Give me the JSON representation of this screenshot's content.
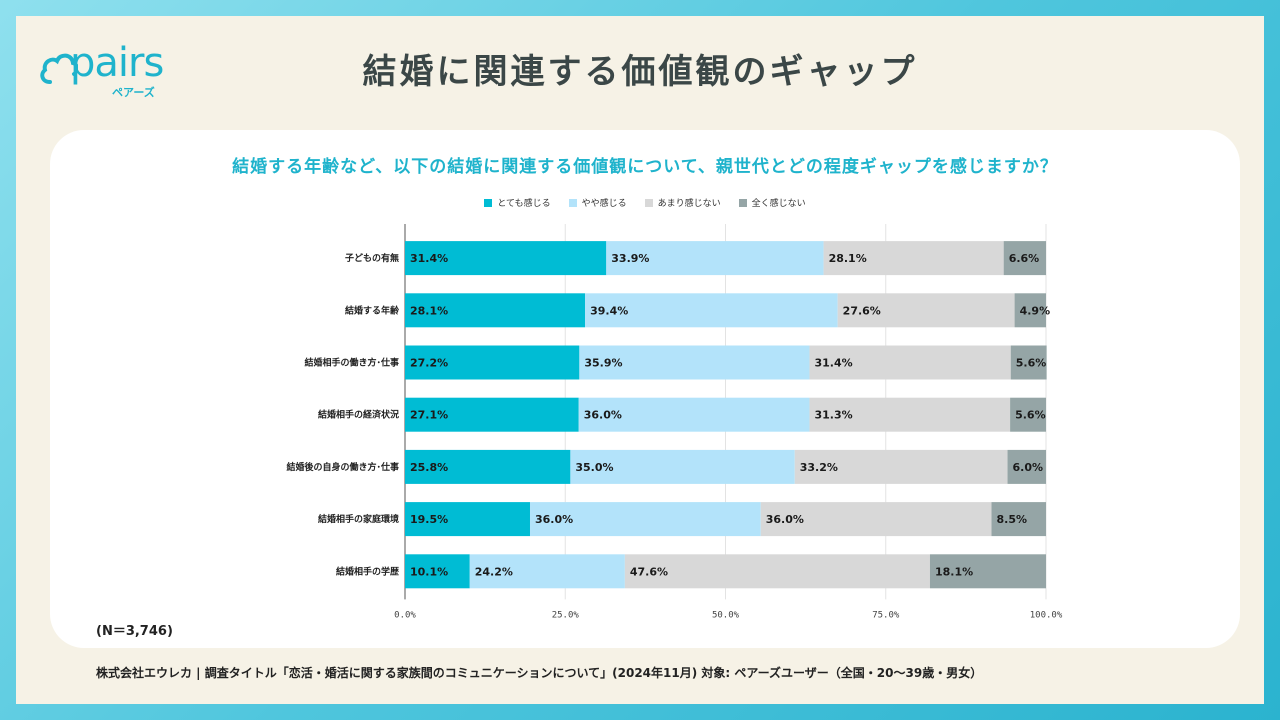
{
  "header": {
    "title": "結婚に関連する価値観のギャップ",
    "logo_text": "pairs",
    "logo_sub": "ペアーズ"
  },
  "question": "結婚する年齢など、以下の結婚に関連する価値観について、親世代とどの程度ギャップを感じますか？",
  "note": "(N＝3,746)",
  "footer": "株式会社エウレカ | 調査タイトル「恋活・婚活に関する家族間のコミュニケーションについて」(2024年11月) 対象: ペアーズユーザー（全国・20〜39歳・男女）",
  "chart_data": {
    "type": "bar",
    "orientation": "horizontal",
    "stacked": true,
    "categories": [
      "子どもの有無",
      "結婚する年齢",
      "結婚相手の働き方･仕事",
      "結婚相手の経済状況",
      "結婚後の自身の働き方･仕事",
      "結婚相手の家庭環境",
      "結婚相手の学歴"
    ],
    "series": [
      {
        "name": "とても感じる",
        "color": "#00bcd4",
        "values": [
          31.4,
          28.1,
          27.2,
          27.1,
          25.8,
          19.5,
          10.1
        ]
      },
      {
        "name": "やや感じる",
        "color": "#b3e3fa",
        "values": [
          33.9,
          39.4,
          35.9,
          36.0,
          35.0,
          36.0,
          24.2
        ]
      },
      {
        "name": "あまり感じない",
        "color": "#d8d8d8",
        "values": [
          28.1,
          27.6,
          31.4,
          31.3,
          33.2,
          36.0,
          47.6
        ]
      },
      {
        "name": "全く感じない",
        "color": "#95a5a6",
        "values": [
          6.6,
          4.9,
          5.6,
          5.6,
          6.0,
          8.5,
          18.1
        ]
      }
    ],
    "xlim": [
      0,
      100
    ],
    "xticks": [
      "0.0%",
      "25.0%",
      "50.0%",
      "75.0%",
      "100.0%"
    ],
    "legend_position": "top",
    "grid": true
  }
}
